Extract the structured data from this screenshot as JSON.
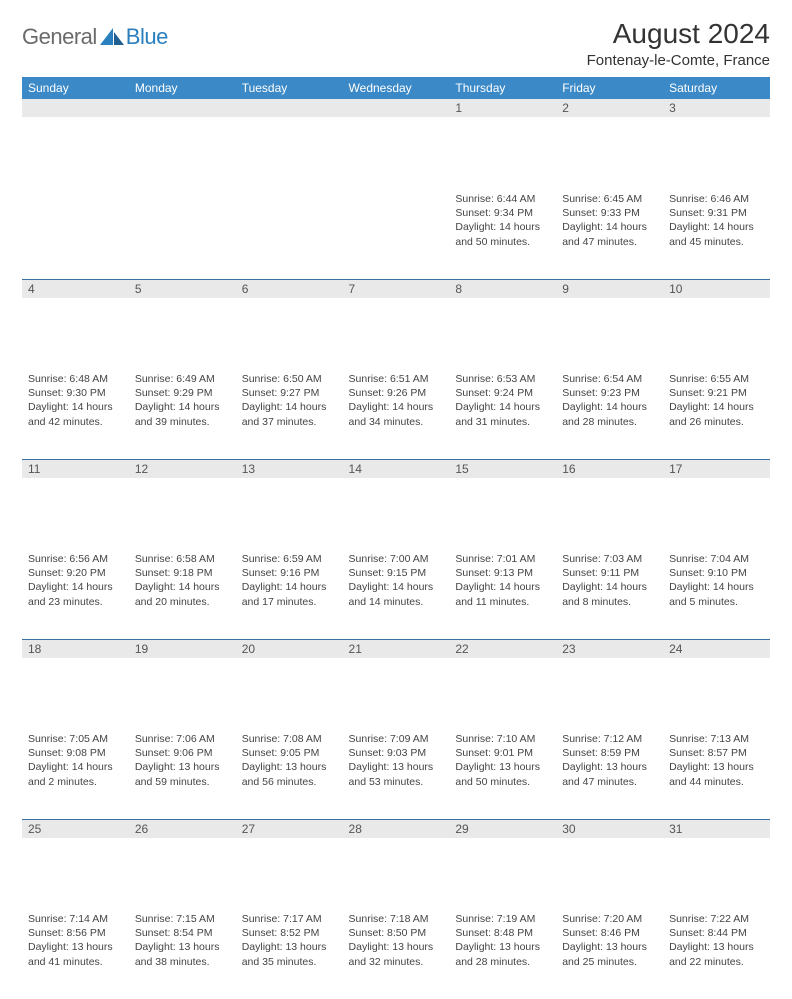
{
  "logo": {
    "general": "General",
    "blue": "Blue"
  },
  "header": {
    "title": "August 2024",
    "location": "Fontenay-le-Comte, France"
  },
  "colors": {
    "header_bg": "#3b89c7",
    "header_text": "#ffffff",
    "daynum_bg": "#e9e9e9",
    "border": "#3b6fa0",
    "logo_gray": "#6b6b6b",
    "logo_blue": "#2a7fbf"
  },
  "weekdays": [
    "Sunday",
    "Monday",
    "Tuesday",
    "Wednesday",
    "Thursday",
    "Friday",
    "Saturday"
  ],
  "weeks": [
    [
      null,
      null,
      null,
      null,
      {
        "n": "1",
        "sr": "6:44 AM",
        "ss": "9:34 PM",
        "dl": "14 hours and 50 minutes."
      },
      {
        "n": "2",
        "sr": "6:45 AM",
        "ss": "9:33 PM",
        "dl": "14 hours and 47 minutes."
      },
      {
        "n": "3",
        "sr": "6:46 AM",
        "ss": "9:31 PM",
        "dl": "14 hours and 45 minutes."
      }
    ],
    [
      {
        "n": "4",
        "sr": "6:48 AM",
        "ss": "9:30 PM",
        "dl": "14 hours and 42 minutes."
      },
      {
        "n": "5",
        "sr": "6:49 AM",
        "ss": "9:29 PM",
        "dl": "14 hours and 39 minutes."
      },
      {
        "n": "6",
        "sr": "6:50 AM",
        "ss": "9:27 PM",
        "dl": "14 hours and 37 minutes."
      },
      {
        "n": "7",
        "sr": "6:51 AM",
        "ss": "9:26 PM",
        "dl": "14 hours and 34 minutes."
      },
      {
        "n": "8",
        "sr": "6:53 AM",
        "ss": "9:24 PM",
        "dl": "14 hours and 31 minutes."
      },
      {
        "n": "9",
        "sr": "6:54 AM",
        "ss": "9:23 PM",
        "dl": "14 hours and 28 minutes."
      },
      {
        "n": "10",
        "sr": "6:55 AM",
        "ss": "9:21 PM",
        "dl": "14 hours and 26 minutes."
      }
    ],
    [
      {
        "n": "11",
        "sr": "6:56 AM",
        "ss": "9:20 PM",
        "dl": "14 hours and 23 minutes."
      },
      {
        "n": "12",
        "sr": "6:58 AM",
        "ss": "9:18 PM",
        "dl": "14 hours and 20 minutes."
      },
      {
        "n": "13",
        "sr": "6:59 AM",
        "ss": "9:16 PM",
        "dl": "14 hours and 17 minutes."
      },
      {
        "n": "14",
        "sr": "7:00 AM",
        "ss": "9:15 PM",
        "dl": "14 hours and 14 minutes."
      },
      {
        "n": "15",
        "sr": "7:01 AM",
        "ss": "9:13 PM",
        "dl": "14 hours and 11 minutes."
      },
      {
        "n": "16",
        "sr": "7:03 AM",
        "ss": "9:11 PM",
        "dl": "14 hours and 8 minutes."
      },
      {
        "n": "17",
        "sr": "7:04 AM",
        "ss": "9:10 PM",
        "dl": "14 hours and 5 minutes."
      }
    ],
    [
      {
        "n": "18",
        "sr": "7:05 AM",
        "ss": "9:08 PM",
        "dl": "14 hours and 2 minutes."
      },
      {
        "n": "19",
        "sr": "7:06 AM",
        "ss": "9:06 PM",
        "dl": "13 hours and 59 minutes."
      },
      {
        "n": "20",
        "sr": "7:08 AM",
        "ss": "9:05 PM",
        "dl": "13 hours and 56 minutes."
      },
      {
        "n": "21",
        "sr": "7:09 AM",
        "ss": "9:03 PM",
        "dl": "13 hours and 53 minutes."
      },
      {
        "n": "22",
        "sr": "7:10 AM",
        "ss": "9:01 PM",
        "dl": "13 hours and 50 minutes."
      },
      {
        "n": "23",
        "sr": "7:12 AM",
        "ss": "8:59 PM",
        "dl": "13 hours and 47 minutes."
      },
      {
        "n": "24",
        "sr": "7:13 AM",
        "ss": "8:57 PM",
        "dl": "13 hours and 44 minutes."
      }
    ],
    [
      {
        "n": "25",
        "sr": "7:14 AM",
        "ss": "8:56 PM",
        "dl": "13 hours and 41 minutes."
      },
      {
        "n": "26",
        "sr": "7:15 AM",
        "ss": "8:54 PM",
        "dl": "13 hours and 38 minutes."
      },
      {
        "n": "27",
        "sr": "7:17 AM",
        "ss": "8:52 PM",
        "dl": "13 hours and 35 minutes."
      },
      {
        "n": "28",
        "sr": "7:18 AM",
        "ss": "8:50 PM",
        "dl": "13 hours and 32 minutes."
      },
      {
        "n": "29",
        "sr": "7:19 AM",
        "ss": "8:48 PM",
        "dl": "13 hours and 28 minutes."
      },
      {
        "n": "30",
        "sr": "7:20 AM",
        "ss": "8:46 PM",
        "dl": "13 hours and 25 minutes."
      },
      {
        "n": "31",
        "sr": "7:22 AM",
        "ss": "8:44 PM",
        "dl": "13 hours and 22 minutes."
      }
    ]
  ],
  "labels": {
    "sunrise": "Sunrise: ",
    "sunset": "Sunset: ",
    "daylight": "Daylight: "
  }
}
